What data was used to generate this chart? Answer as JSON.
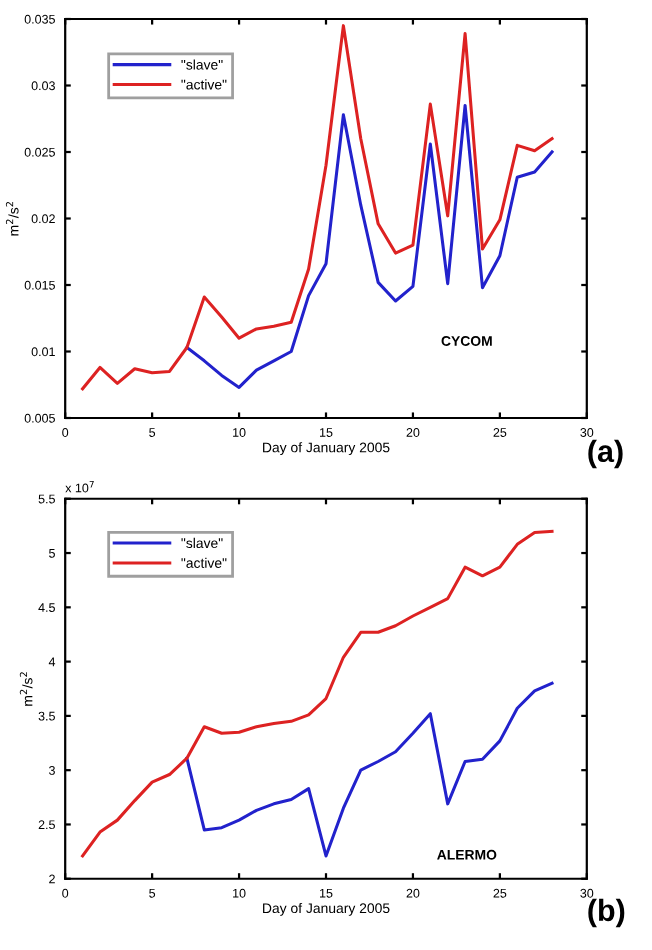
{
  "chart_data": [
    {
      "type": "line",
      "xlabel": "Day of January 2005",
      "ylabel": "m$^{2}$/s$^{2}$",
      "x": [
        1,
        2,
        3,
        4,
        5,
        6,
        7,
        8,
        9,
        10,
        11,
        12,
        13,
        14,
        15,
        16,
        17,
        18,
        19,
        20,
        21,
        22,
        23,
        24,
        25,
        26,
        27,
        28
      ],
      "series": [
        {
          "name": "\"slave\"",
          "color": "#2222cc",
          "values": [
            null,
            null,
            null,
            null,
            null,
            null,
            0.0103,
            0.0093,
            0.0082,
            0.0073,
            0.0086,
            0.0093,
            0.01,
            0.0142,
            0.0166,
            0.0278,
            0.021,
            0.0152,
            0.0138,
            0.0149,
            0.0256,
            0.0151,
            0.0285,
            0.0148,
            0.0172,
            0.0231,
            0.0235,
            0.025
          ]
        },
        {
          "name": "\"active\"",
          "color": "#dd2222",
          "values": [
            0.0072,
            0.0088,
            0.0076,
            0.0087,
            0.0084,
            0.0085,
            0.0103,
            0.0141,
            0.0126,
            0.011,
            0.0117,
            0.0119,
            0.0122,
            0.0162,
            0.024,
            0.0345,
            0.026,
            0.0196,
            0.0174,
            0.018,
            0.0286,
            0.0202,
            0.0339,
            0.0177,
            0.0199,
            0.0255,
            0.0251,
            0.026
          ]
        }
      ],
      "xlim": [
        0,
        30
      ],
      "xticks": [
        0,
        5,
        10,
        15,
        20,
        25,
        30
      ],
      "ylim": [
        0.005,
        0.035
      ],
      "yticks": [
        0.005,
        0.01,
        0.015,
        0.02,
        0.025,
        0.03,
        0.035
      ],
      "legend": "top left",
      "grid": false,
      "annotations": [
        "CYCOM",
        "(a)"
      ]
    },
    {
      "type": "line",
      "xlabel": "Day of January 2005",
      "ylabel": "m$^{2}$/s$^{2}$",
      "x": [
        1,
        2,
        3,
        4,
        5,
        6,
        7,
        8,
        9,
        10,
        11,
        12,
        13,
        14,
        15,
        16,
        17,
        18,
        19,
        20,
        21,
        22,
        23,
        24,
        25,
        26,
        27,
        28
      ],
      "series": [
        {
          "name": "\"slave\"",
          "color": "#2222cc",
          "values": [
            null,
            null,
            null,
            null,
            null,
            null,
            3.11,
            2.45,
            2.47,
            2.54,
            2.63,
            2.69,
            2.73,
            2.83,
            2.21,
            2.65,
            3.0,
            3.08,
            3.17,
            3.34,
            3.52,
            2.69,
            3.08,
            3.1,
            3.27,
            3.57,
            3.73,
            3.8
          ]
        },
        {
          "name": "\"active\"",
          "color": "#dd2222",
          "values": [
            2.21,
            2.43,
            2.54,
            2.72,
            2.89,
            2.96,
            3.11,
            3.4,
            3.34,
            3.35,
            3.4,
            3.43,
            3.45,
            3.51,
            3.66,
            4.04,
            4.27,
            4.27,
            4.33,
            4.42,
            4.5,
            4.58,
            4.87,
            4.79,
            4.87,
            5.08,
            5.19,
            5.2
          ]
        }
      ],
      "xlim": [
        0,
        30
      ],
      "xticks": [
        0,
        5,
        10,
        15,
        20,
        25,
        30
      ],
      "ylim": [
        2,
        5.5
      ],
      "yticks": [
        2,
        2.5,
        3,
        3.5,
        4,
        4.5,
        5,
        5.5
      ],
      "legend": "top left",
      "grid": false,
      "annotations": [
        "x 10$^{7}$",
        "ALERMO",
        "(b)"
      ]
    }
  ]
}
